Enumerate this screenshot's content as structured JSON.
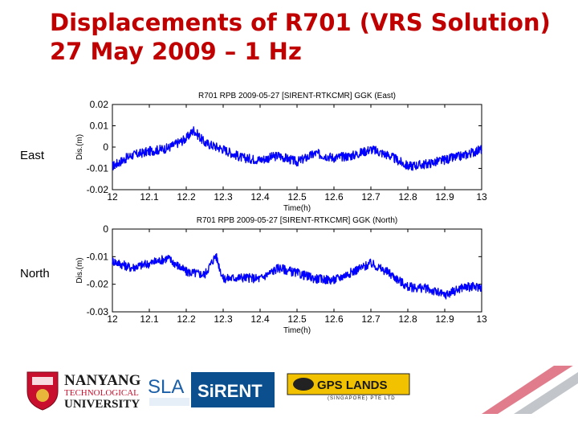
{
  "slide": {
    "title_line1": "Displacements of R701 (VRS Solution)",
    "title_line2": "27 May 2009 – 1 Hz",
    "label_east": "East",
    "label_north": "North"
  },
  "logos": {
    "ntu_line1": "NANYANG",
    "ntu_line2": "TECHNOLOGICAL",
    "ntu_line3": "UNIVERSITY",
    "sla": "SLA",
    "sirent": "SiRENT",
    "gps_lands": "GPS LANDS",
    "gps_lands_sub": "(SINGAPORE) PTE LTD"
  },
  "chart_data": [
    {
      "type": "line",
      "title": "R701 RPB 2009-05-27 [SIRENT-RTKCMR] GGK (East)",
      "xlabel": "Time(h)",
      "ylabel": "Dis.(m)",
      "xlim": [
        12,
        13
      ],
      "ylim": [
        -0.02,
        0.02
      ],
      "xticks": [
        "12",
        "12.1",
        "12.2",
        "12.3",
        "12.4",
        "12.5",
        "12.6",
        "12.7",
        "12.8",
        "12.9",
        "13"
      ],
      "yticks": [
        "0.02",
        "0.01",
        "0",
        "-0.01",
        "-0.02"
      ],
      "grid": false,
      "color": "#0000ff",
      "series": [
        {
          "x": [
            12.0,
            12.05,
            12.1,
            12.15,
            12.2,
            12.22,
            12.25,
            12.3,
            12.35,
            12.4,
            12.45,
            12.5,
            12.55,
            12.6,
            12.65,
            12.7,
            12.75,
            12.8,
            12.85,
            12.9,
            12.95,
            13.0
          ],
          "values": [
            -0.009,
            -0.004,
            -0.002,
            -0.0005,
            0.004,
            0.008,
            0.002,
            -0.001,
            -0.005,
            -0.006,
            -0.004,
            -0.007,
            -0.003,
            -0.005,
            -0.004,
            -0.001,
            -0.004,
            -0.009,
            -0.008,
            -0.006,
            -0.004,
            -0.001
          ]
        }
      ]
    },
    {
      "type": "line",
      "title": "R701 RPB 2009-05-27 [SIRENT-RTKCMR] GGK (North)",
      "xlabel": "Time(h)",
      "ylabel": "Dis.(m)",
      "xlim": [
        12,
        13
      ],
      "ylim": [
        -0.03,
        0
      ],
      "xticks": [
        "12",
        "12.1",
        "12.2",
        "12.3",
        "12.4",
        "12.5",
        "12.6",
        "12.7",
        "12.8",
        "12.9",
        "13"
      ],
      "yticks": [
        "0",
        "-0.01",
        "-0.02",
        "-0.03"
      ],
      "grid": false,
      "color": "#0000ff",
      "series": [
        {
          "x": [
            12.0,
            12.05,
            12.1,
            12.15,
            12.2,
            12.25,
            12.28,
            12.3,
            12.35,
            12.4,
            12.45,
            12.5,
            12.55,
            12.6,
            12.65,
            12.7,
            12.75,
            12.8,
            12.85,
            12.9,
            12.95,
            13.0
          ],
          "values": [
            -0.0115,
            -0.014,
            -0.0125,
            -0.0105,
            -0.0155,
            -0.0165,
            -0.0095,
            -0.018,
            -0.0175,
            -0.018,
            -0.014,
            -0.016,
            -0.018,
            -0.0185,
            -0.0155,
            -0.0125,
            -0.016,
            -0.021,
            -0.0215,
            -0.024,
            -0.021,
            -0.021
          ]
        }
      ]
    }
  ]
}
